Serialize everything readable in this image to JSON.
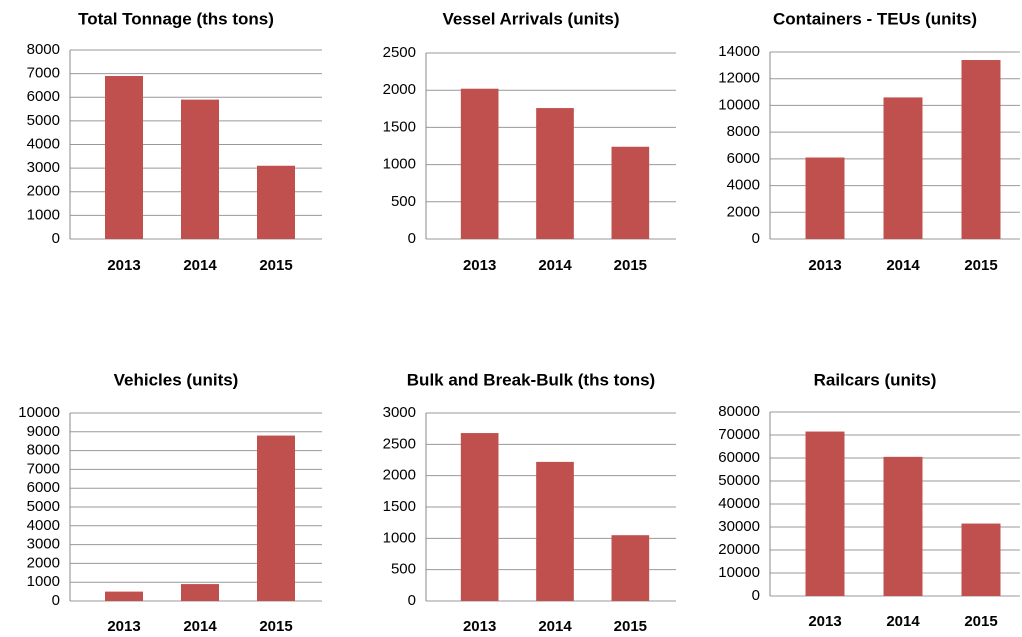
{
  "chart_data": [
    {
      "type": "bar",
      "title": "Total Tonnage (ths tons)",
      "categories": [
        "2013",
        "2014",
        "2015"
      ],
      "values": [
        6900,
        5900,
        3100
      ],
      "color": "#c0504d",
      "ylim": [
        0,
        8000
      ],
      "yticks": [
        0,
        1000,
        2000,
        3000,
        4000,
        5000,
        6000,
        7000,
        8000
      ],
      "grid": true
    },
    {
      "type": "bar",
      "title": "Vessel Arrivals (units)",
      "categories": [
        "2013",
        "2014",
        "2015"
      ],
      "values": [
        2020,
        1760,
        1240
      ],
      "color": "#c0504d",
      "ylim": [
        0,
        2500
      ],
      "yticks": [
        0,
        500,
        1000,
        1500,
        2000,
        2500
      ],
      "grid": true
    },
    {
      "type": "bar",
      "title": "Containers - TEUs (units)",
      "categories": [
        "2013",
        "2014",
        "2015"
      ],
      "values": [
        6100,
        10600,
        13400
      ],
      "color": "#c0504d",
      "ylim": [
        0,
        14000
      ],
      "yticks": [
        0,
        2000,
        4000,
        6000,
        8000,
        10000,
        12000,
        14000
      ],
      "grid": true
    },
    {
      "type": "bar",
      "title": "Vehicles (units)",
      "categories": [
        "2013",
        "2014",
        "2015"
      ],
      "values": [
        500,
        900,
        8800
      ],
      "color": "#c0504d",
      "ylim": [
        0,
        10000
      ],
      "yticks": [
        0,
        1000,
        2000,
        3000,
        4000,
        5000,
        6000,
        7000,
        8000,
        9000,
        10000
      ],
      "grid": true
    },
    {
      "type": "bar",
      "title": "Bulk and Break-Bulk (ths tons)",
      "categories": [
        "2013",
        "2014",
        "2015"
      ],
      "values": [
        2680,
        2220,
        1050
      ],
      "color": "#c0504d",
      "ylim": [
        0,
        3000
      ],
      "yticks": [
        0,
        500,
        1000,
        1500,
        2000,
        2500,
        3000
      ],
      "grid": true
    },
    {
      "type": "bar",
      "title": "Railcars (units)",
      "categories": [
        "2013",
        "2014",
        "2015"
      ],
      "values": [
        71500,
        60500,
        31500
      ],
      "color": "#c0504d",
      "ylim": [
        0,
        80000
      ],
      "yticks": [
        0,
        10000,
        20000,
        30000,
        40000,
        50000,
        60000,
        70000,
        80000
      ],
      "grid": true
    }
  ]
}
